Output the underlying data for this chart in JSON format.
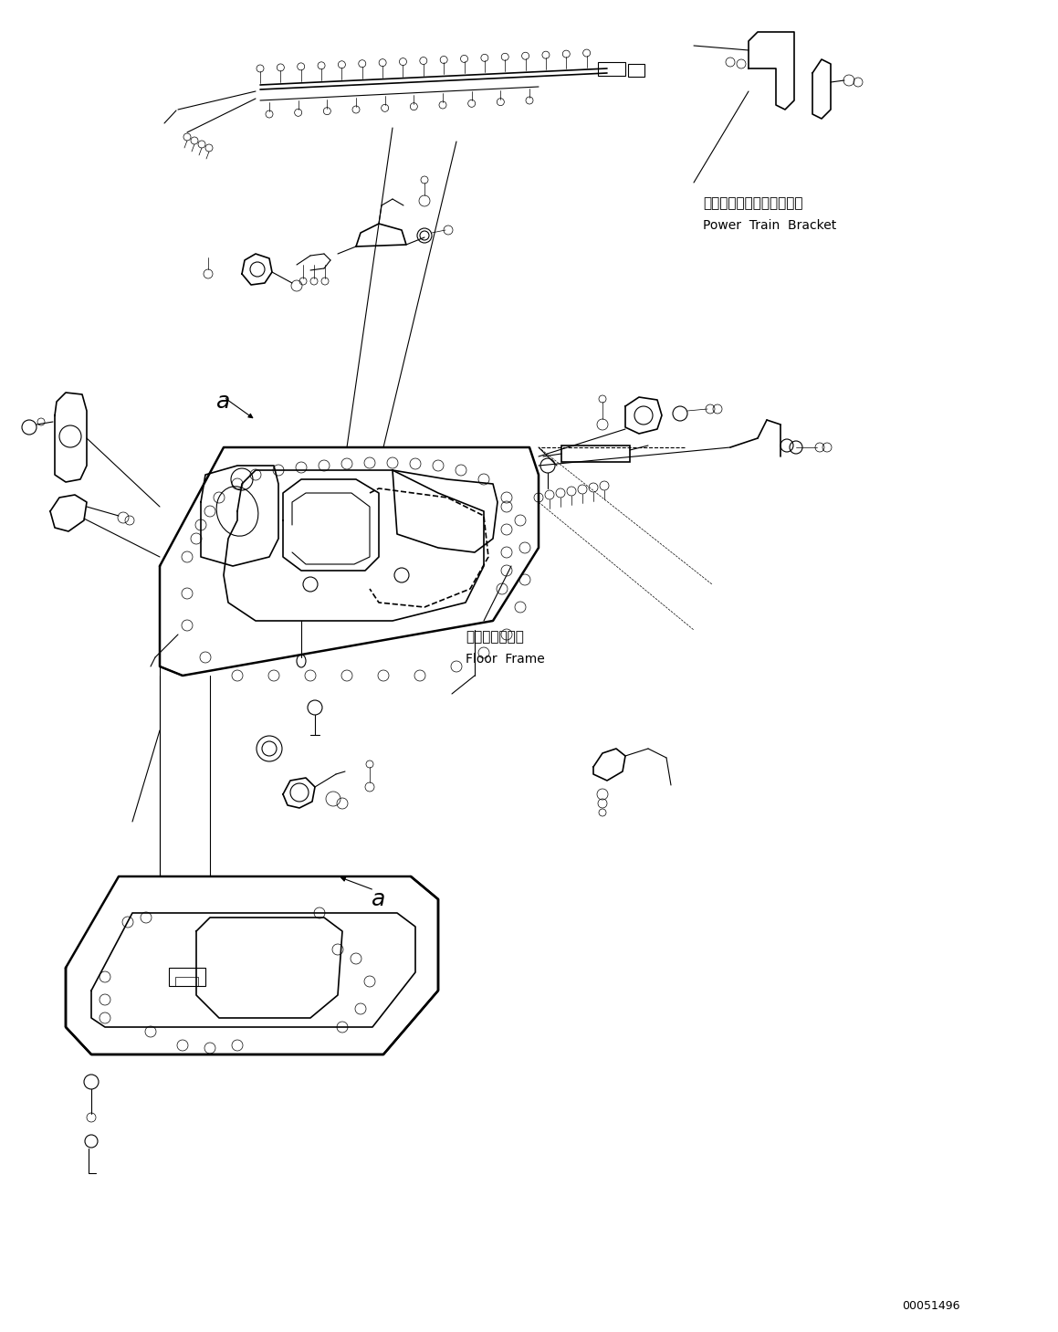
{
  "figure_width": 11.59,
  "figure_height": 14.59,
  "dpi": 100,
  "bg_color": "#ffffff",
  "line_color": "#000000",
  "part_number": "00051496",
  "labels": {
    "power_train_bracket_jp": "パワートレインブラケット",
    "power_train_bracket_en": "Power  Train  Bracket",
    "floor_frame_jp": "フロアフレーム",
    "floor_frame_en": "Floor  Frame",
    "label_a": "a"
  }
}
